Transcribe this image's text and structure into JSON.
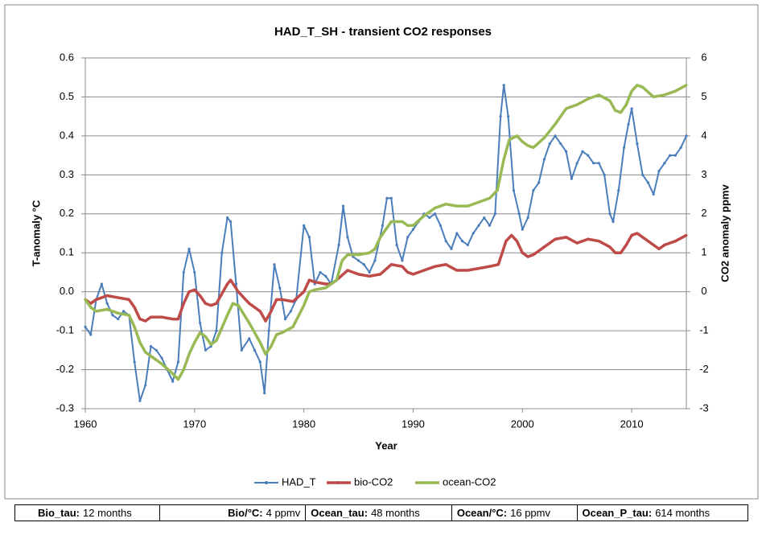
{
  "chart_data": {
    "type": "line",
    "title": "HAD_T_SH - transient CO2 responses",
    "x_label": "Year",
    "y_label": "T-anomaly °C",
    "y2_label": "CO2 anomaly ppmv",
    "xlim": [
      1960,
      2015
    ],
    "xticks": [
      1960,
      1970,
      1980,
      1990,
      2000,
      2010
    ],
    "ylim": [
      -0.3,
      0.6
    ],
    "yticks": [
      -0.3,
      -0.2,
      -0.1,
      {
        "value": 0,
        "label": "0.0"
      },
      0.1,
      0.2,
      0.3,
      0.4,
      0.5,
      0.6
    ],
    "y2lim": [
      -3,
      6
    ],
    "y2ticks": [
      -3,
      -2,
      -1,
      0,
      1,
      2,
      3,
      4,
      5,
      6
    ],
    "grid": true,
    "legend": "bottom",
    "series": [
      {
        "name": "HAD_T",
        "color": "#4a7ebb",
        "x": [
          1960,
          1960.5,
          1961,
          1961.5,
          1962,
          1962.5,
          1963,
          1963.5,
          1964,
          1964.5,
          1965,
          1965.5,
          1966,
          1966.5,
          1967,
          1967.5,
          1968,
          1968.5,
          1969,
          1969.5,
          1970,
          1970.5,
          1971,
          1971.5,
          1972,
          1972.5,
          1973,
          1973.3,
          1973.8,
          1974.3,
          1975,
          1975.5,
          1976,
          1976.4,
          1976.8,
          1977.3,
          1977.8,
          1978.3,
          1978.8,
          1979.3,
          1980,
          1980.5,
          1981,
          1981.5,
          1982,
          1982.5,
          1983.2,
          1983.6,
          1984,
          1984.5,
          1985,
          1985.5,
          1986,
          1986.5,
          1987.2,
          1987.6,
          1988,
          1988.5,
          1989,
          1989.5,
          1990,
          1990.5,
          1991,
          1991.5,
          1992,
          1992.5,
          1993,
          1993.5,
          1994,
          1994.5,
          1995,
          1995.5,
          1996,
          1996.5,
          1997,
          1997.5,
          1998,
          1998.3,
          1998.7,
          1999.2,
          1999.7,
          2000,
          2000.5,
          2001,
          2001.5,
          2002,
          2002.5,
          2003,
          2003.5,
          2004,
          2004.5,
          2005,
          2005.5,
          2006,
          2006.5,
          2007,
          2007.5,
          2008,
          2008.3,
          2008.8,
          2009.3,
          2009.7,
          2010,
          2010.5,
          2011,
          2011.5,
          2012,
          2012.5,
          2013,
          2013.5,
          2014,
          2014.5,
          2015
        ],
        "values": [
          -0.09,
          -0.11,
          -0.02,
          0.02,
          -0.03,
          -0.06,
          -0.07,
          -0.05,
          -0.06,
          -0.18,
          -0.28,
          -0.24,
          -0.14,
          -0.15,
          -0.17,
          -0.2,
          -0.23,
          -0.18,
          0.05,
          0.11,
          0.05,
          -0.08,
          -0.15,
          -0.14,
          -0.1,
          0.1,
          0.19,
          0.18,
          0.02,
          -0.15,
          -0.12,
          -0.15,
          -0.18,
          -0.26,
          -0.1,
          0.07,
          0.01,
          -0.07,
          -0.05,
          -0.02,
          0.17,
          0.14,
          0.02,
          0.05,
          0.04,
          0.02,
          0.12,
          0.22,
          0.14,
          0.09,
          0.08,
          0.07,
          0.05,
          0.08,
          0.17,
          0.24,
          0.24,
          0.12,
          0.08,
          0.14,
          0.16,
          0.18,
          0.2,
          0.19,
          0.2,
          0.17,
          0.13,
          0.11,
          0.15,
          0.13,
          0.12,
          0.15,
          0.17,
          0.19,
          0.17,
          0.2,
          0.45,
          0.53,
          0.45,
          0.26,
          0.2,
          0.16,
          0.19,
          0.26,
          0.28,
          0.34,
          0.38,
          0.4,
          0.38,
          0.36,
          0.29,
          0.33,
          0.36,
          0.35,
          0.33,
          0.33,
          0.3,
          0.2,
          0.18,
          0.26,
          0.37,
          0.43,
          0.47,
          0.38,
          0.3,
          0.28,
          0.25,
          0.31,
          0.33,
          0.35,
          0.35,
          0.37,
          0.4
        ]
      },
      {
        "name": "bio-CO2",
        "color": "#be4b48",
        "axis": "y2",
        "x": [
          1960,
          1960.5,
          1961,
          1962,
          1963,
          1964,
          1964.5,
          1965,
          1965.5,
          1966,
          1967,
          1968,
          1968.5,
          1969,
          1969.5,
          1970,
          1970.5,
          1971,
          1971.5,
          1972,
          1973,
          1973.3,
          1974,
          1975,
          1976,
          1976.5,
          1977,
          1977.5,
          1978,
          1979,
          1980,
          1980.5,
          1981,
          1982,
          1982.5,
          1983,
          1984,
          1985,
          1986,
          1987,
          1988,
          1989,
          1989.5,
          1990,
          1991,
          1992,
          1993,
          1994,
          1995,
          1996,
          1997,
          1997.8,
          1998.5,
          1999,
          1999.5,
          2000,
          2000.5,
          2001,
          2002,
          2003,
          2004,
          2005,
          2006,
          2007,
          2008,
          2008.5,
          2009,
          2009.5,
          2010,
          2010.5,
          2011,
          2012,
          2012.5,
          2013,
          2014,
          2015
        ],
        "values": [
          -0.2,
          -0.3,
          -0.2,
          -0.1,
          -0.15,
          -0.2,
          -0.4,
          -0.7,
          -0.75,
          -0.65,
          -0.65,
          -0.7,
          -0.7,
          -0.3,
          0,
          0.05,
          -0.1,
          -0.3,
          -0.35,
          -0.3,
          0.2,
          0.3,
          0,
          -0.3,
          -0.5,
          -0.75,
          -0.5,
          -0.2,
          -0.2,
          -0.25,
          0,
          0.3,
          0.25,
          0.2,
          0.2,
          0.3,
          0.55,
          0.45,
          0.4,
          0.45,
          0.7,
          0.65,
          0.5,
          0.45,
          0.55,
          0.65,
          0.7,
          0.55,
          0.55,
          0.6,
          0.65,
          0.7,
          1.3,
          1.45,
          1.3,
          1.0,
          0.9,
          0.95,
          1.15,
          1.35,
          1.4,
          1.25,
          1.35,
          1.3,
          1.15,
          1.0,
          1.0,
          1.2,
          1.45,
          1.5,
          1.4,
          1.2,
          1.1,
          1.2,
          1.3,
          1.45
        ]
      },
      {
        "name": "ocean-CO2",
        "color": "#98b954",
        "axis": "y2",
        "x": [
          1960,
          1960.5,
          1961,
          1962,
          1963,
          1964,
          1964.5,
          1965,
          1965.5,
          1966,
          1967,
          1968,
          1968.5,
          1969,
          1969.5,
          1970,
          1970.5,
          1971,
          1971.5,
          1972,
          1973,
          1973.5,
          1974,
          1975,
          1976,
          1976.5,
          1977,
          1977.5,
          1978,
          1979,
          1980,
          1980.5,
          1981,
          1982,
          1983,
          1983.5,
          1984,
          1985,
          1986,
          1986.5,
          1987,
          1988,
          1989,
          1989.5,
          1990,
          1991,
          1992,
          1993,
          1994,
          1995,
          1996,
          1997,
          1997.7,
          1998.3,
          1998.8,
          1999.5,
          2000,
          2000.5,
          2001,
          2002,
          2003,
          2004,
          2005,
          2006,
          2007,
          2008,
          2008.5,
          2009,
          2009.5,
          2010,
          2010.5,
          2011,
          2012,
          2013,
          2014,
          2015
        ],
        "values": [
          -0.2,
          -0.4,
          -0.5,
          -0.45,
          -0.55,
          -0.6,
          -0.9,
          -1.3,
          -1.55,
          -1.65,
          -1.85,
          -2.1,
          -2.25,
          -2.0,
          -1.6,
          -1.3,
          -1.05,
          -1.15,
          -1.35,
          -1.25,
          -0.6,
          -0.3,
          -0.35,
          -0.8,
          -1.3,
          -1.6,
          -1.4,
          -1.1,
          -1.05,
          -0.9,
          -0.35,
          0,
          0.05,
          0.1,
          0.3,
          0.8,
          0.95,
          0.95,
          1.0,
          1.1,
          1.4,
          1.8,
          1.8,
          1.7,
          1.7,
          1.95,
          2.15,
          2.25,
          2.2,
          2.2,
          2.3,
          2.4,
          2.6,
          3.4,
          3.9,
          4.0,
          3.85,
          3.75,
          3.7,
          3.95,
          4.3,
          4.7,
          4.8,
          4.95,
          5.05,
          4.9,
          4.65,
          4.6,
          4.8,
          5.15,
          5.3,
          5.25,
          5.0,
          5.05,
          5.15,
          5.3
        ]
      }
    ]
  },
  "footer": [
    {
      "label": "Bio_tau:",
      "value": "12 months"
    },
    {
      "label": "Bio/°C:",
      "value": "4 ppmv"
    },
    {
      "label": "Ocean_tau:",
      "value": "48 months"
    },
    {
      "label": "Ocean/°C:",
      "value": "16 ppmv"
    },
    {
      "label": "Ocean_P_tau:",
      "value": "614 months"
    }
  ]
}
